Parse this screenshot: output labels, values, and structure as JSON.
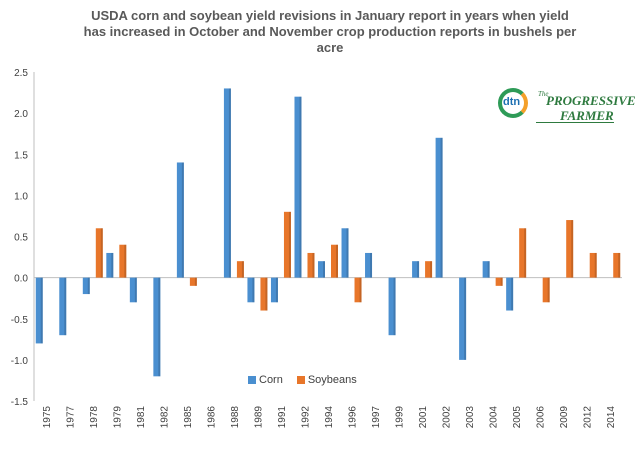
{
  "chart_data": {
    "type": "bar",
    "title_lines": [
      "USDA  corn and soybean yield revisions in January report in years when yield",
      "has increased in October and November crop production reports in bushels per",
      "acre"
    ],
    "categories": [
      "1975",
      "1977",
      "1978",
      "1979",
      "1981",
      "1982",
      "1985",
      "1986",
      "1988",
      "1989",
      "1991",
      "1992",
      "1994",
      "1996",
      "1997",
      "1999",
      "2001",
      "2002",
      "2003",
      "2004",
      "2005",
      "2006",
      "2009",
      "2012",
      "2014"
    ],
    "series": [
      {
        "name": "Corn",
        "color": "#4a8fd0",
        "values": [
          -0.8,
          -0.7,
          -0.2,
          0.3,
          -0.3,
          -1.2,
          1.4,
          0,
          2.3,
          -0.3,
          -0.3,
          2.2,
          0.2,
          0.6,
          0.3,
          -0.7,
          0.2,
          1.7,
          -1.0,
          0.2,
          -0.4,
          0,
          0,
          0,
          0
        ]
      },
      {
        "name": "Soybeans",
        "color": "#e8762a",
        "values": [
          0,
          0,
          0.6,
          0.4,
          0,
          0,
          -0.1,
          0,
          0.2,
          -0.4,
          0.8,
          0.3,
          0.4,
          -0.3,
          0,
          0,
          0.2,
          0,
          0,
          -0.1,
          0.6,
          -0.3,
          0.7,
          0.3,
          0.3
        ]
      }
    ],
    "ylim": [
      -1.5,
      2.5
    ],
    "yticks": [
      "2.5",
      "2.0",
      "1.5",
      "1.0",
      "0.5",
      "0.0",
      "-0.5",
      "-1.0",
      "-1.5"
    ],
    "ytick_values": [
      2.5,
      2.0,
      1.5,
      1.0,
      0.5,
      0.0,
      -0.5,
      -1.0,
      -1.5
    ],
    "grid": false,
    "legend_position": "bottom-center"
  },
  "logo": {
    "dtn": "dtn",
    "the": "The",
    "progressive": "PROGRESSIVE",
    "farmer": "FARMER"
  },
  "legend": {
    "corn": "Corn",
    "soybeans": "Soybeans"
  }
}
